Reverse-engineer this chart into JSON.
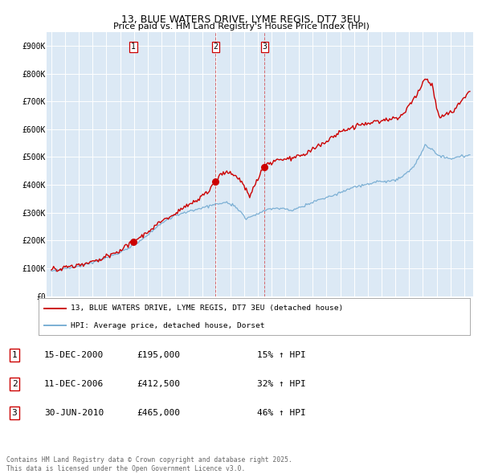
{
  "title": "13, BLUE WATERS DRIVE, LYME REGIS, DT7 3EU",
  "subtitle": "Price paid vs. HM Land Registry's House Price Index (HPI)",
  "legend_line1": "13, BLUE WATERS DRIVE, LYME REGIS, DT7 3EU (detached house)",
  "legend_line2": "HPI: Average price, detached house, Dorset",
  "footnote": "Contains HM Land Registry data © Crown copyright and database right 2025.\nThis data is licensed under the Open Government Licence v3.0.",
  "hpi_color": "#7bafd4",
  "prop_color": "#cc0000",
  "bg_color": "#dce9f5",
  "ylim": [
    0,
    950000
  ],
  "ytick_vals": [
    0,
    100000,
    200000,
    300000,
    400000,
    500000,
    600000,
    700000,
    800000,
    900000
  ],
  "ytick_labels": [
    "£0",
    "£100K",
    "£200K",
    "£300K",
    "£400K",
    "£500K",
    "£600K",
    "£700K",
    "£800K",
    "£900K"
  ],
  "sale_rows": [
    [
      "1",
      "15-DEC-2000",
      "£195,000",
      "15% ↑ HPI"
    ],
    [
      "2",
      "11-DEC-2006",
      "£412,500",
      "32% ↑ HPI"
    ],
    [
      "3",
      "30-JUN-2010",
      "£465,000",
      "46% ↑ HPI"
    ]
  ],
  "sale_labels": [
    "1",
    "2",
    "3"
  ]
}
